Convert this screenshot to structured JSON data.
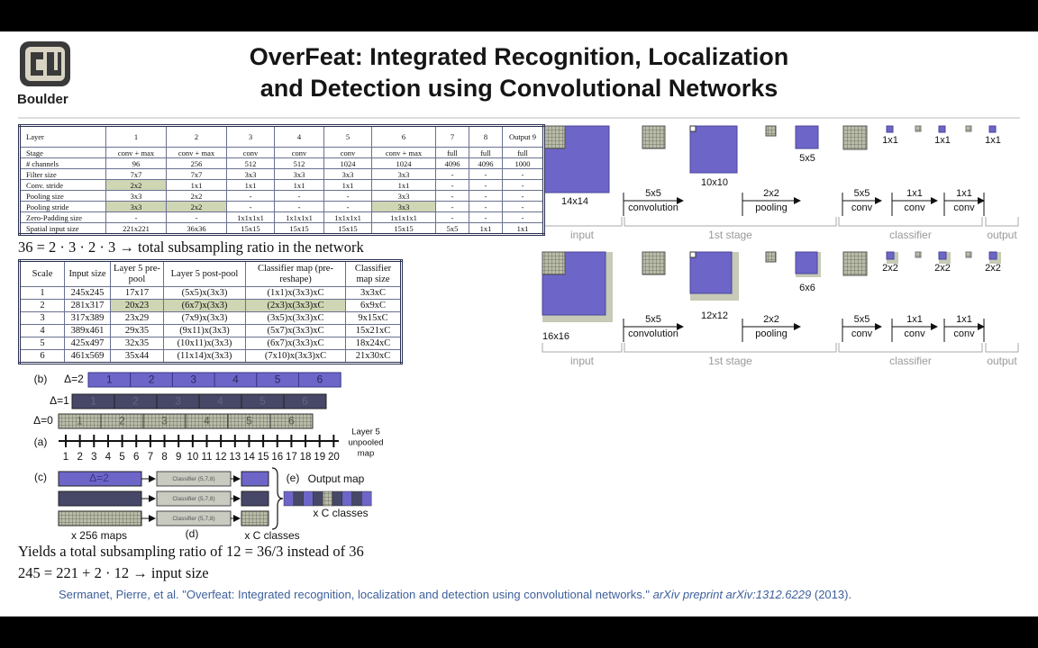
{
  "header": {
    "logo_text": "Boulder",
    "title": [
      "OverFeat: Integrated Recognition, Localization",
      "and Detection using Convolutional Networks"
    ]
  },
  "architecture_table": {
    "header": [
      "Layer",
      "1",
      "2",
      "3",
      "4",
      "5",
      "6",
      "7",
      "8",
      "Output 9"
    ],
    "rows": [
      [
        "Stage",
        "conv + max",
        "conv + max",
        "conv",
        "conv",
        "conv",
        "conv + max",
        "full",
        "full",
        "full"
      ],
      [
        "# channels",
        "96",
        "256",
        "512",
        "512",
        "1024",
        "1024",
        "4096",
        "4096",
        "1000"
      ],
      [
        "Filter size",
        "7x7",
        "7x7",
        "3x3",
        "3x3",
        "3x3",
        "3x3",
        "-",
        "-",
        "-"
      ],
      [
        "Conv. stride",
        "2x2",
        "1x1",
        "1x1",
        "1x1",
        "1x1",
        "1x1",
        "-",
        "-",
        "-"
      ],
      [
        "Pooling size",
        "3x3",
        "2x2",
        "-",
        "-",
        "-",
        "3x3",
        "-",
        "-",
        "-"
      ],
      [
        "Pooling stride",
        "3x3",
        "2x2",
        "-",
        "-",
        "-",
        "3x3",
        "-",
        "-",
        "-"
      ],
      [
        "Zero-Padding size",
        "-",
        "-",
        "1x1x1x1",
        "1x1x1x1",
        "1x1x1x1",
        "1x1x1x1",
        "-",
        "-",
        "-"
      ],
      [
        "Spatial input size",
        "221x221",
        "36x36",
        "15x15",
        "15x15",
        "15x15",
        "15x15",
        "5x5",
        "1x1",
        "1x1"
      ]
    ]
  },
  "subsampling_note": "36 = 2 · 3 · 2 · 3 → total subsampling ratio in the network",
  "scales_table": {
    "header": [
      "Scale",
      "Input size",
      "Layer 5 pre-pool",
      "Layer 5 post-pool",
      "Classifier map (pre-reshape)",
      "Classifier map size"
    ],
    "rows": [
      [
        "1",
        "245x245",
        "17x17",
        "(5x5)x(3x3)",
        "(1x1)x(3x3)xC",
        "3x3xC"
      ],
      [
        "2",
        "281x317",
        "20x23",
        "(6x7)x(3x3)",
        "(2x3)x(3x3)xC",
        "6x9xC"
      ],
      [
        "3",
        "317x389",
        "23x29",
        "(7x9)x(3x3)",
        "(3x5)x(3x3)xC",
        "9x15xC"
      ],
      [
        "4",
        "389x461",
        "29x35",
        "(9x11)x(3x3)",
        "(5x7)x(3x3)xC",
        "15x21xC"
      ],
      [
        "5",
        "425x497",
        "32x35",
        "(10x11)x(3x3)",
        "(6x7)x(3x3)xC",
        "18x24xC"
      ],
      [
        "6",
        "461x569",
        "35x44",
        "(11x14)x(3x3)",
        "(7x10)x(3x3)xC",
        "21x30xC"
      ]
    ]
  },
  "offset_diagram": {
    "labels": {
      "a": "(a)",
      "b": "(b)",
      "c": "(c)",
      "d": "(d)",
      "e": "(e)"
    },
    "deltas": [
      "Δ=2",
      "Δ=1",
      "Δ=0"
    ],
    "segments": [
      "1",
      "2",
      "3",
      "4",
      "5",
      "6"
    ],
    "positions": [
      "1",
      "2",
      "3",
      "4",
      "5",
      "6",
      "7",
      "8",
      "9",
      "10",
      "11",
      "12",
      "13",
      "14",
      "15",
      "16",
      "17",
      "18",
      "19",
      "20"
    ],
    "layer_caption": [
      "Layer 5",
      "unpooled",
      "map"
    ],
    "classifier": "Classifier (5,7,8)",
    "maps_caption": "x 256 maps",
    "classes_caption": "x C classes",
    "output_title": "Output map",
    "output_classes": "x C classes"
  },
  "notes": [
    "Yields a total subsampling ratio of 12 = 36/3 instead of 36",
    "245 = 221 + 2 · 12 → input size"
  ],
  "citation": {
    "authors": "Sermanet, Pierre, et al. \"Overfeat: Integrated recognition, localization and detection using convolutional networks.\"",
    "venue": "arXiv preprint arXiv:1312.6229",
    "year": "(2013)."
  },
  "pipeline": [
    {
      "sizes": {
        "input": "14x14",
        "stage_map": "10x10",
        "pooled": "5x5",
        "outputs": [
          "1x1",
          "1x1",
          "1x1"
        ]
      },
      "ops": [
        {
          "kernel": "5x5",
          "name": "convolution"
        },
        {
          "kernel": "2x2",
          "name": "pooling"
        },
        {
          "kernel": "5x5",
          "name": "conv"
        },
        {
          "kernel": "1x1",
          "name": "conv"
        },
        {
          "kernel": "1x1",
          "name": "conv"
        }
      ],
      "sections": [
        "input",
        "1st stage",
        "classifier",
        "output"
      ]
    },
    {
      "sizes": {
        "input": "16x16",
        "stage_map": "12x12",
        "pooled": "6x6",
        "outputs": [
          "2x2",
          "2x2",
          "2x2"
        ]
      },
      "ops": [
        {
          "kernel": "5x5",
          "name": "convolution"
        },
        {
          "kernel": "2x2",
          "name": "pooling"
        },
        {
          "kernel": "5x5",
          "name": "conv"
        },
        {
          "kernel": "1x1",
          "name": "conv"
        },
        {
          "kernel": "1x1",
          "name": "conv"
        }
      ],
      "sections": [
        "input",
        "1st stage",
        "classifier",
        "output"
      ]
    }
  ]
}
